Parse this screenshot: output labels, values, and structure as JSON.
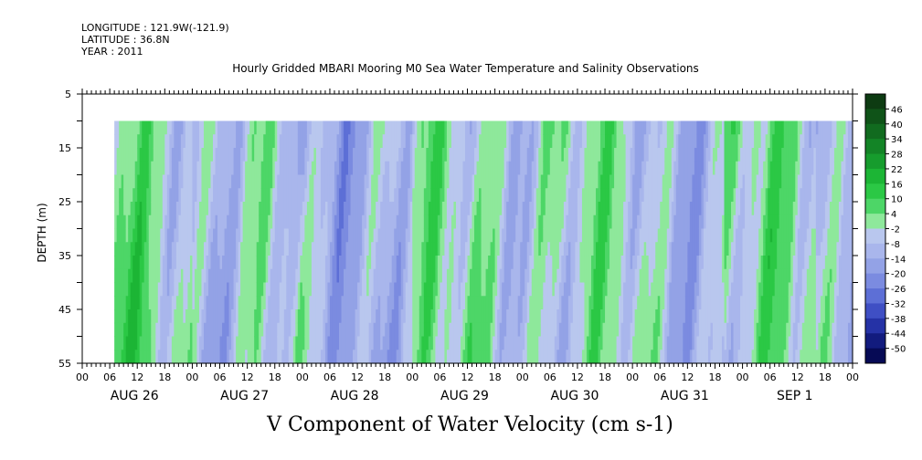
{
  "header": {
    "longitude": "LONGITUDE : 121.9W(-121.9)",
    "latitude": "LATITUDE : 36.8N",
    "year": "YEAR : 2011"
  },
  "chart_data": {
    "type": "heatmap",
    "title": "Hourly Gridded MBARI Mooring M0 Sea Water Temperature and Salinity Observations",
    "xlabel": "V Component of Water Velocity (cm s-1)",
    "ylabel": "DEPTH (m)",
    "ylim": [
      55,
      5
    ],
    "y_ticks": [
      5,
      15,
      25,
      35,
      45,
      55
    ],
    "x_hour_ticks": [
      "00",
      "06",
      "12",
      "18",
      "00",
      "06",
      "12",
      "18",
      "00",
      "06",
      "12",
      "18",
      "00",
      "06",
      "12",
      "18",
      "00",
      "06",
      "12",
      "18",
      "00",
      "06",
      "12",
      "18",
      "00",
      "06",
      "12",
      "18",
      "00"
    ],
    "date_labels": [
      "AUG 26",
      "AUG 27",
      "AUG 28",
      "AUG 29",
      "AUG 30",
      "AUG 31",
      "SEP  1"
    ],
    "data_extent": {
      "depth_min": 10,
      "depth_max": 55,
      "time_start_hour": 7,
      "time_end_hour": 168
    },
    "colorbar": {
      "levels": [
        46,
        40,
        34,
        28,
        22,
        16,
        10,
        4,
        -2,
        -8,
        -14,
        -20,
        -26,
        -32,
        -38,
        -44,
        -50
      ],
      "colors": [
        "#0d3b12",
        "#0f5318",
        "#116b1f",
        "#138426",
        "#169c2d",
        "#1cb535",
        "#2bc845",
        "#4dd667",
        "#8ee89b",
        "#b9c7ee",
        "#a9b6ec",
        "#93a2e6",
        "#7b8be0",
        "#5d6fd6",
        "#3f4fc4",
        "#2532a6",
        "#121b7e",
        "#060a55"
      ]
    },
    "grid": false,
    "legend_placement": "right"
  }
}
